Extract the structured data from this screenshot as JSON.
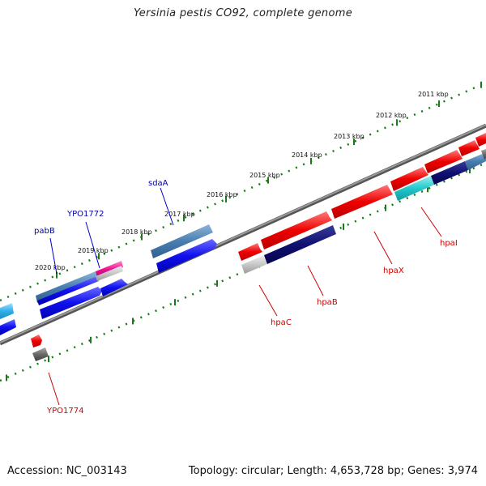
{
  "title": "Yersinia pestis CO92, complete genome",
  "footer": {
    "accession": "Accession: NC_003143",
    "summary": "Topology: circular; Length: 4,653,728 bp; Genes: 3,974"
  },
  "colors": {
    "forward_label": "#0000aa",
    "reverse_label": "#cc0000",
    "tick": "#1a7a1a",
    "backbone": "#7a7a7a"
  },
  "ruler_labels": [
    "2011 kbp",
    "2012 kbp",
    "2013 kbp",
    "2014 kbp",
    "2015 kbp",
    "2016 kbp",
    "2017 kbp",
    "2018 kbp",
    "2019 kbp",
    "2020 kbp"
  ],
  "gene_labels": {
    "sdaA": "sdaA",
    "YPO1772": "YPO1772",
    "pabB": "pabB",
    "hpaI": "hpaI",
    "hpaX": "hpaX",
    "hpaB": "hpaB",
    "hpaC": "hpaC",
    "YPO1774": "YPO1774"
  }
}
